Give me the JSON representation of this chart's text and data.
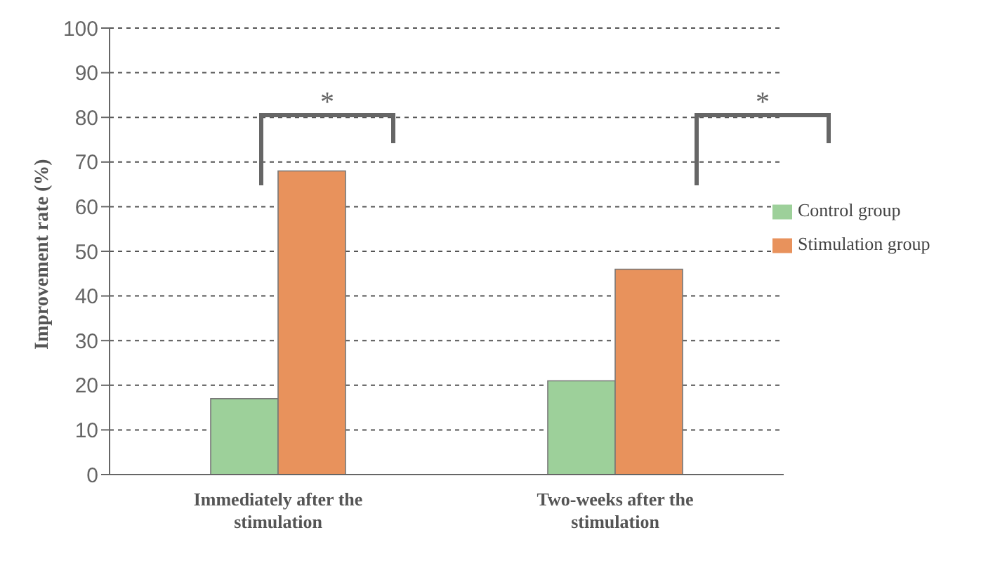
{
  "chart_data": {
    "type": "bar",
    "ylabel": "Improvement rate (%)",
    "categories": [
      "Immediately after the stimulation",
      "Two-weeks after the stimulation"
    ],
    "series": [
      {
        "name": "Control group",
        "color": "#9dd09a",
        "values": [
          17,
          21
        ]
      },
      {
        "name": "Stimulation group",
        "color": "#e8925c",
        "values": [
          68,
          46
        ]
      }
    ],
    "ylim": [
      0,
      100
    ],
    "yticks": [
      0,
      10,
      20,
      30,
      40,
      50,
      60,
      70,
      80,
      90,
      100
    ],
    "grid": "y",
    "legend": "top right",
    "annotations": [
      "*",
      "*"
    ]
  }
}
